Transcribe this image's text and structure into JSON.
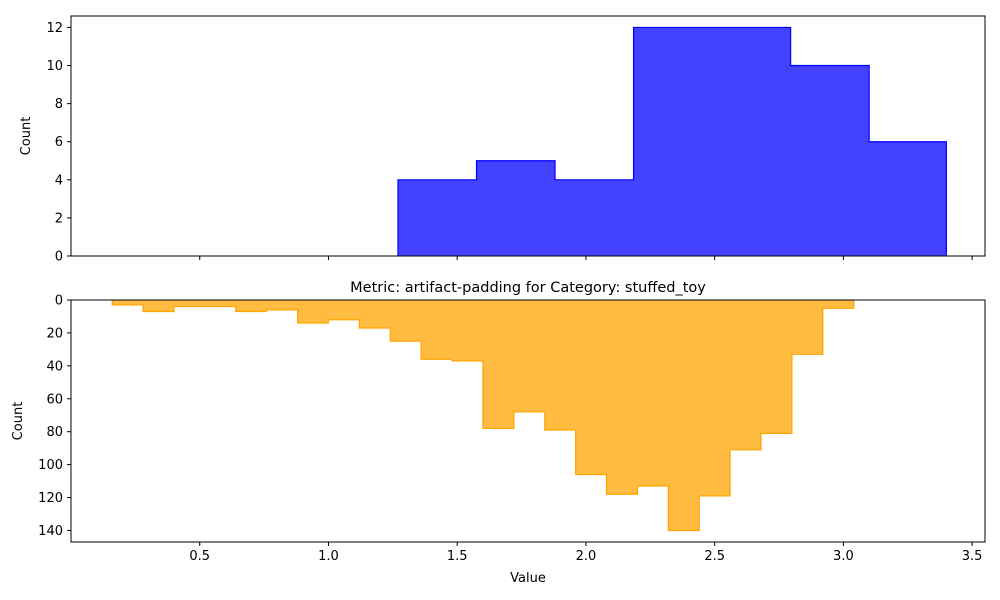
{
  "chart_data": [
    {
      "type": "area",
      "subtype": "step-histogram",
      "title": "",
      "xlabel": "",
      "ylabel": "Count",
      "xlim": [
        0.0,
        3.55
      ],
      "ylim": [
        0,
        12.6
      ],
      "xticks": [
        0.5,
        1.0,
        1.5,
        2.0,
        2.5,
        3.0,
        3.5
      ],
      "xtick_labels_visible": false,
      "yticks": [
        0,
        2,
        4,
        6,
        8,
        10,
        12
      ],
      "ytick_labels": [
        "0",
        "2",
        "4",
        "6",
        "8",
        "10",
        "12"
      ],
      "grid": false,
      "series": [
        {
          "color": "#0000ff",
          "fill_opacity": 0.74,
          "bin_edges": [
            1.27,
            1.575,
            1.88,
            2.185,
            2.49,
            2.795,
            3.1,
            3.4
          ],
          "values": [
            4,
            5,
            4,
            12,
            12,
            10,
            6
          ]
        }
      ]
    },
    {
      "type": "area",
      "subtype": "step-histogram",
      "title": "Metric: artifact-padding for Category: stuffed_toy",
      "xlabel": "Value",
      "ylabel": "Count",
      "xlim": [
        0.0,
        3.55
      ],
      "ylim": [
        147,
        0
      ],
      "y_inverted": true,
      "xticks": [
        0.5,
        1.0,
        1.5,
        2.0,
        2.5,
        3.0,
        3.5
      ],
      "xtick_labels": [
        "0.5",
        "1.0",
        "1.5",
        "2.0",
        "2.5",
        "3.0",
        "3.5"
      ],
      "yticks": [
        0,
        20,
        40,
        60,
        80,
        100,
        120,
        140
      ],
      "ytick_labels": [
        "0",
        "20",
        "40",
        "60",
        "80",
        "100",
        "120",
        "140"
      ],
      "grid": false,
      "series": [
        {
          "color": "#ffa500",
          "fill_opacity": 0.75,
          "bin_edges": [
            0.16,
            0.28,
            0.4,
            0.52,
            0.64,
            0.76,
            0.88,
            1.0,
            1.12,
            1.24,
            1.36,
            1.48,
            1.6,
            1.72,
            1.84,
            1.96,
            2.08,
            2.2,
            2.32,
            2.44,
            2.56,
            2.68,
            2.8,
            2.92,
            3.04
          ],
          "values": [
            3,
            7,
            4,
            4,
            7,
            6,
            14,
            12,
            17,
            25,
            36,
            37,
            78,
            68,
            79,
            106,
            118,
            113,
            140,
            119,
            91,
            81,
            33,
            5
          ]
        }
      ]
    }
  ]
}
